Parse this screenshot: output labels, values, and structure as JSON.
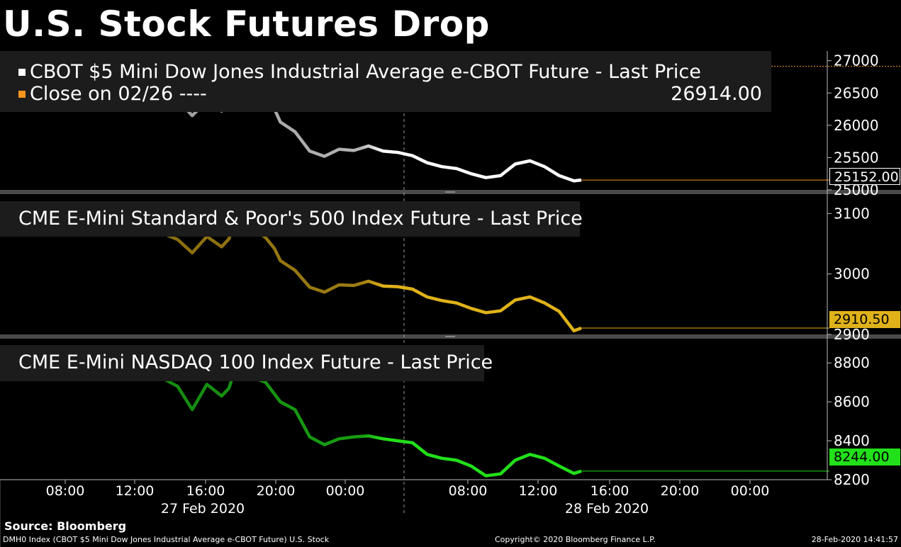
{
  "title": "U.S. Stock Futures Drop",
  "source": "Source: Bloomberg",
  "footer": {
    "left": "DMH0 Index (CBOT $5 Mini Dow Jones Industrial Average e-CBOT Future) U.S. Stock",
    "center": "Copyright© 2020 Bloomberg Finance L.P.",
    "right": "28-Feb-2020 14:41:57"
  },
  "colors": {
    "dow": "#ffffff",
    "sp": "#e0b21a",
    "nasdaq": "#22e01a",
    "close": "#f7941d",
    "grid": "#555555"
  },
  "chart_data": [
    {
      "type": "line",
      "legend": [
        "CBOT $5 Mini Dow Jones Industrial Average e-CBOT Future - Last Price",
        "Close on 02/26 ----"
      ],
      "legend_value": "26914.00",
      "last_label": "25152.00",
      "ylim": [
        25000,
        27150
      ],
      "yticks": [
        25000,
        25500,
        26000,
        26500,
        27000
      ],
      "ytick_labels": [
        "25000",
        "25500",
        "26000",
        "26500",
        "27000"
      ],
      "reference_line": {
        "name": "Close on 02/26",
        "value": 26914.0
      },
      "series": [
        {
          "name": "CBOT $5 Mini Dow Jones Industrial Average e-CBOT Future - Last Price",
          "x": [
            0,
            1,
            2,
            3,
            4,
            5,
            6,
            7,
            8,
            9,
            10,
            11,
            12,
            13,
            14,
            15,
            15.5,
            16,
            17,
            18,
            18.6,
            19,
            20,
            21,
            22,
            23,
            24,
            25,
            26,
            27,
            28,
            29,
            30,
            31,
            32,
            33,
            34,
            35,
            36,
            37,
            38,
            39,
            39.5
          ],
          "values": [
            26930,
            26860,
            26800,
            26760,
            26720,
            26690,
            26650,
            26700,
            26680,
            26620,
            26560,
            26500,
            26400,
            26150,
            26380,
            26220,
            26350,
            26750,
            26580,
            26420,
            26250,
            26050,
            25900,
            25600,
            25520,
            25630,
            25610,
            25680,
            25600,
            25580,
            25530,
            25420,
            25360,
            25330,
            25250,
            25190,
            25220,
            25400,
            25450,
            25360,
            25220,
            25140,
            25152
          ]
        }
      ]
    },
    {
      "type": "line",
      "legend": [
        "CME E-Mini Standard & Poor's 500 Index Future - Last Price"
      ],
      "last_label": "2910.50",
      "ylim": [
        2900,
        3125
      ],
      "yticks": [
        2900,
        3000,
        3100
      ],
      "ytick_labels": [
        "2900",
        "3000",
        "3100"
      ],
      "series": [
        {
          "name": "CME E-Mini Standard & Poor's 500 Index Future - Last Price",
          "x": [
            0,
            1,
            2,
            3,
            4,
            5,
            6,
            7,
            8,
            9,
            10,
            11,
            12,
            13,
            14,
            15,
            15.5,
            16,
            17,
            18,
            18.6,
            19,
            20,
            21,
            22,
            23,
            24,
            25,
            26,
            27,
            28,
            29,
            30,
            31,
            32,
            33,
            34,
            35,
            36,
            37,
            38,
            39,
            39.5
          ],
          "values": [
            3112,
            3103,
            3097,
            3092,
            3088,
            3085,
            3081,
            3086,
            3083,
            3078,
            3073,
            3067,
            3057,
            3035,
            3062,
            3045,
            3058,
            3095,
            3078,
            3060,
            3042,
            3022,
            3006,
            2978,
            2970,
            2982,
            2981,
            2988,
            2980,
            2979,
            2975,
            2962,
            2956,
            2952,
            2943,
            2936,
            2939,
            2957,
            2962,
            2952,
            2938,
            2906,
            2910.5
          ]
        }
      ]
    },
    {
      "type": "line",
      "legend": [
        "CME E-Mini NASDAQ 100 Index Future - Last Price"
      ],
      "last_label": "8244.00",
      "ylim": [
        8200,
        8910
      ],
      "yticks": [
        8200,
        8400,
        8600,
        8800
      ],
      "ytick_labels": [
        "8200",
        "8400",
        "8600",
        "8800"
      ],
      "series": [
        {
          "name": "CME E-Mini NASDAQ 100 Index Future - Last Price",
          "x": [
            0,
            1,
            2,
            3,
            4,
            5,
            6,
            7,
            8,
            9,
            10,
            11,
            12,
            13,
            14,
            15,
            15.5,
            16,
            17,
            18,
            18.6,
            19,
            20,
            21,
            22,
            23,
            24,
            25,
            26,
            27,
            28,
            29,
            30,
            31,
            32,
            33,
            34,
            35,
            36,
            37,
            38,
            39,
            39.5
          ],
          "values": [
            8880,
            8850,
            8830,
            8815,
            8800,
            8790,
            8780,
            8790,
            8780,
            8760,
            8745,
            8720,
            8680,
            8560,
            8690,
            8630,
            8670,
            8790,
            8730,
            8700,
            8640,
            8600,
            8560,
            8420,
            8380,
            8410,
            8420,
            8425,
            8410,
            8400,
            8390,
            8330,
            8310,
            8300,
            8270,
            8220,
            8230,
            8300,
            8330,
            8310,
            8270,
            8232,
            8244
          ]
        }
      ]
    }
  ],
  "x_axis": {
    "times": [
      "08:00",
      "12:00",
      "16:00",
      "20:00",
      "00:00",
      "08:00",
      "12:00",
      "16:00",
      "20:00",
      "00:00"
    ],
    "dates": [
      "27 Feb 2020",
      "28 Feb 2020"
    ]
  }
}
